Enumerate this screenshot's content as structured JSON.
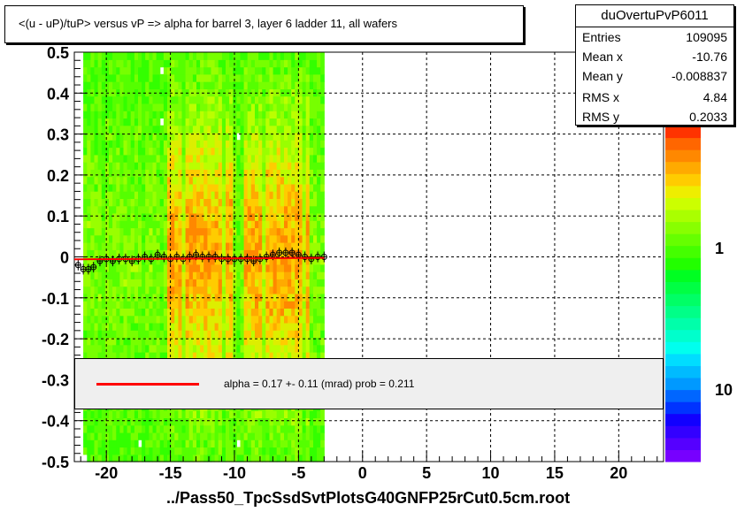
{
  "title": "<(u - uP)/tuP> versus   vP => alpha for barrel 3, layer 6 ladder 11, all wafers",
  "stats": {
    "name": "duOvertuPvP6011",
    "rows": [
      {
        "label": "Entries",
        "value": "109095"
      },
      {
        "label": "Mean x",
        "value": "-10.76"
      },
      {
        "label": "Mean y",
        "value": "-0.008837"
      },
      {
        "label": "RMS x",
        "value": "4.84"
      },
      {
        "label": "RMS y",
        "value": "0.2033"
      }
    ]
  },
  "fit_legend": "alpha =    0.17 +-  0.11 (mrad) prob = 0.211",
  "file_label": "../Pass50_TpcSsdSvtPlotsG40GNFP25rCut0.5cm.root",
  "colors": {
    "fit_line": "#ff0000",
    "profile_marker": "#000000"
  },
  "chart_data": {
    "type": "heatmap",
    "title": "<(u - uP)/tuP> versus   vP => alpha for barrel 3, layer 6 ladder 11, all wafers",
    "xlabel": "",
    "ylabel": "",
    "xlim": [
      -22.5,
      23.5
    ],
    "ylim": [
      -0.5,
      0.5
    ],
    "x_ticks": [
      -20,
      -15,
      -10,
      -5,
      0,
      5,
      10,
      15,
      20
    ],
    "y_ticks": [
      -0.5,
      -0.4,
      -0.3,
      -0.2,
      -0.1,
      0,
      0.1,
      0.2,
      0.3,
      0.4,
      0.5
    ],
    "x_tick_labels": [
      "-20",
      "-15",
      "-10",
      "-5",
      "0",
      "5",
      "10",
      "15",
      "20"
    ],
    "y_tick_labels": [
      "-0.5",
      "-0.4",
      "-0.3",
      "-0.2",
      "-0.1",
      "0",
      "0.1",
      "0.2",
      "0.3",
      "0.4",
      "0.5"
    ],
    "grid": true,
    "populated_x_range": [
      -21.8,
      -3.0
    ],
    "dense_regions_x": [
      [
        -15.2,
        -10.2
      ],
      [
        -9.2,
        -4.2
      ]
    ],
    "colorbar_labels": [
      "1",
      "10"
    ],
    "colorbar_partial_label": "0",
    "profile_points": {
      "x": [
        -22.2,
        -21.8,
        -21.4,
        -21.0,
        -20.5,
        -20.0,
        -19.5,
        -19.0,
        -18.5,
        -18.0,
        -17.5,
        -17.0,
        -16.5,
        -16.0,
        -15.5,
        -15.0,
        -14.5,
        -14.0,
        -13.5,
        -13.0,
        -12.5,
        -12.0,
        -11.5,
        -11.0,
        -10.5,
        -10.0,
        -9.5,
        -9.0,
        -8.5,
        -8.0,
        -7.5,
        -7.0,
        -6.5,
        -6.0,
        -5.5,
        -5.0,
        -4.5,
        -4.0,
        -3.5,
        -3.0
      ],
      "y": [
        -0.02,
        -0.03,
        -0.03,
        -0.025,
        -0.01,
        -0.005,
        -0.01,
        -0.005,
        -0.005,
        -0.01,
        -0.005,
        0.0,
        -0.005,
        0.005,
        0.0,
        -0.005,
        0.0,
        -0.005,
        0.0,
        0.005,
        0.0,
        0.0,
        0.0,
        -0.005,
        -0.005,
        -0.005,
        -0.005,
        -0.005,
        -0.01,
        -0.005,
        0.0,
        0.005,
        0.01,
        0.01,
        0.01,
        0.005,
        0.0,
        -0.005,
        0.0,
        0.0
      ]
    },
    "fit_line": {
      "slope": 0.00017,
      "intercept": -0.002,
      "x_range": [
        -22.5,
        -3.0
      ]
    }
  }
}
